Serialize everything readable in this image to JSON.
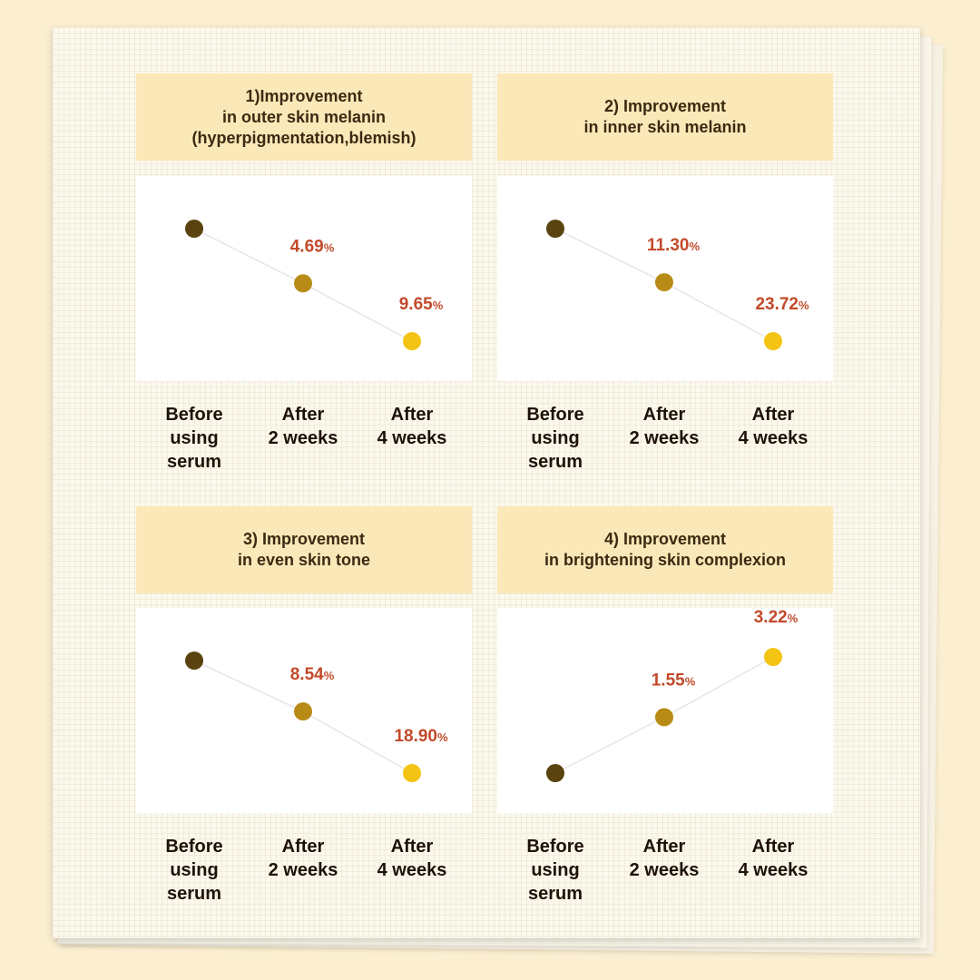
{
  "colors": {
    "before": "#5a430f",
    "week2": "#b88b16",
    "week4": "#f4c414",
    "label": "#c24a2a",
    "line": "#e6e6e6"
  },
  "chart_data": [
    {
      "type": "scatter",
      "title": "1)Improvement\nin outer skin melanin\n(hyperpigmentation,blemish)",
      "categories": [
        "Before\nusing\nserum",
        "After\n2 weeks",
        "After\n4 weeks"
      ],
      "values": [
        0,
        4.69,
        9.65
      ],
      "labels": [
        "",
        "4.69",
        "9.65"
      ],
      "unit": "%",
      "direction": "down"
    },
    {
      "type": "scatter",
      "title": "2) Improvement\nin inner skin melanin",
      "categories": [
        "Before\nusing\nserum",
        "After\n2 weeks",
        "After\n4 weeks"
      ],
      "values": [
        0,
        11.3,
        23.72
      ],
      "labels": [
        "",
        "11.30",
        "23.72"
      ],
      "unit": "%",
      "direction": "down"
    },
    {
      "type": "scatter",
      "title": "3) Improvement\nin even skin tone",
      "categories": [
        "Before\nusing\nserum",
        "After\n2 weeks",
        "After\n4 weeks"
      ],
      "values": [
        0,
        8.54,
        18.9
      ],
      "labels": [
        "",
        "8.54",
        "18.90"
      ],
      "unit": "%",
      "direction": "down"
    },
    {
      "type": "scatter",
      "title": "4) Improvement\nin brightening skin complexion",
      "categories": [
        "Before\nusing\nserum",
        "After\n2 weeks",
        "After\n4 weeks"
      ],
      "values": [
        0,
        1.55,
        3.22
      ],
      "labels": [
        "",
        "1.55",
        "3.22"
      ],
      "unit": "%",
      "direction": "up"
    }
  ]
}
